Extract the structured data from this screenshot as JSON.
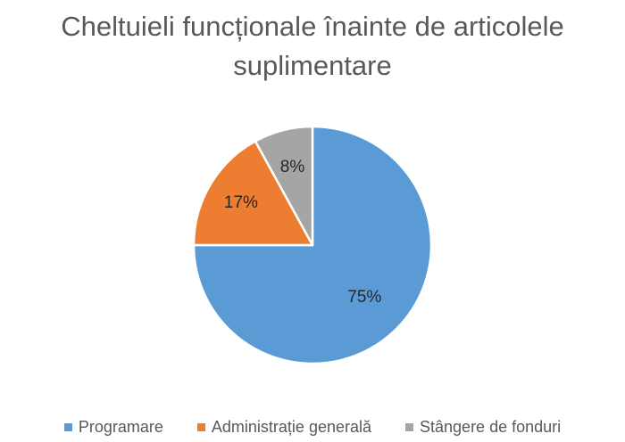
{
  "chart_data": {
    "type": "pie",
    "title": "Cheltuieli funcționale înainte de articolele suplimentare",
    "categories": [
      "Programare",
      "Administrație generală",
      "Stângere de fonduri"
    ],
    "values": [
      75,
      17,
      8
    ],
    "data_labels": [
      "75%",
      "17%",
      "8%"
    ],
    "colors": [
      "#5B9BD5",
      "#ED7D31",
      "#A5A5A5"
    ],
    "legend": "bottom",
    "start_angle": "12 o'clock, clockwise"
  }
}
